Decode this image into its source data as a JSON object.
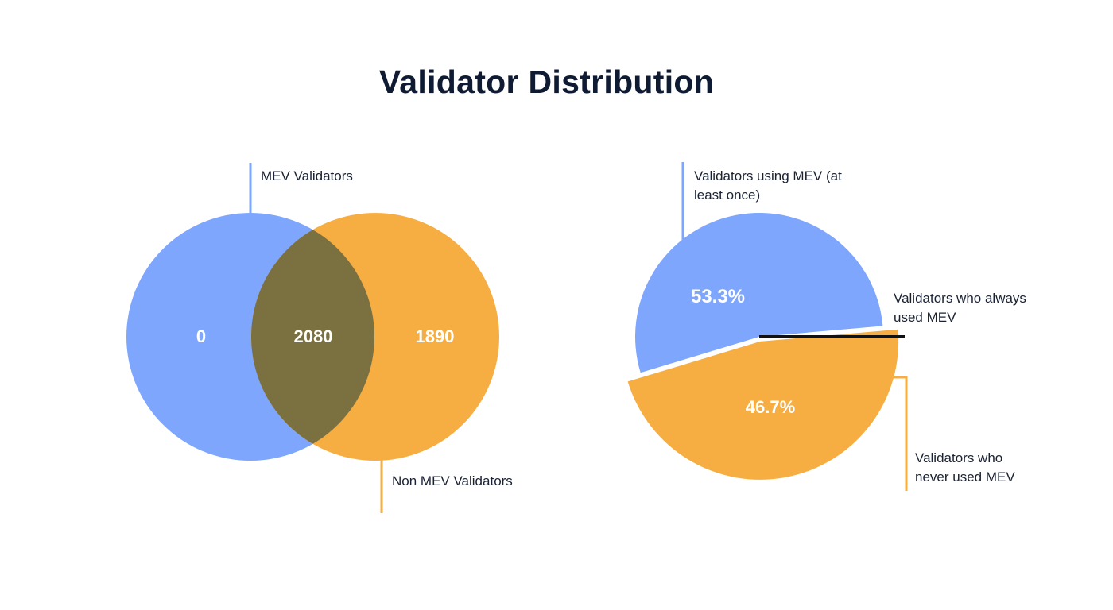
{
  "title": "Validator Distribution",
  "colors": {
    "blue": "#7ea6fc",
    "orange": "#f6ae43",
    "overlap": "#7b7040",
    "black": "#111111",
    "text": "#1a2233",
    "title": "#0f1b33"
  },
  "chart_data": [
    {
      "type": "venn",
      "sets": [
        {
          "name": "MEV Validators",
          "only_value": "0"
        },
        {
          "name": "Non MEV Validators",
          "only_value": "1890"
        }
      ],
      "intersection_value": "2080"
    },
    {
      "type": "pie",
      "slices": [
        {
          "label": "Validators using MEV (at least once)",
          "value": 53.3,
          "display": "53.3%"
        },
        {
          "label": "Validators who never used MEV",
          "value": 46.7,
          "display": "46.7%"
        }
      ],
      "annotation": "Validators who always used MEV"
    }
  ]
}
